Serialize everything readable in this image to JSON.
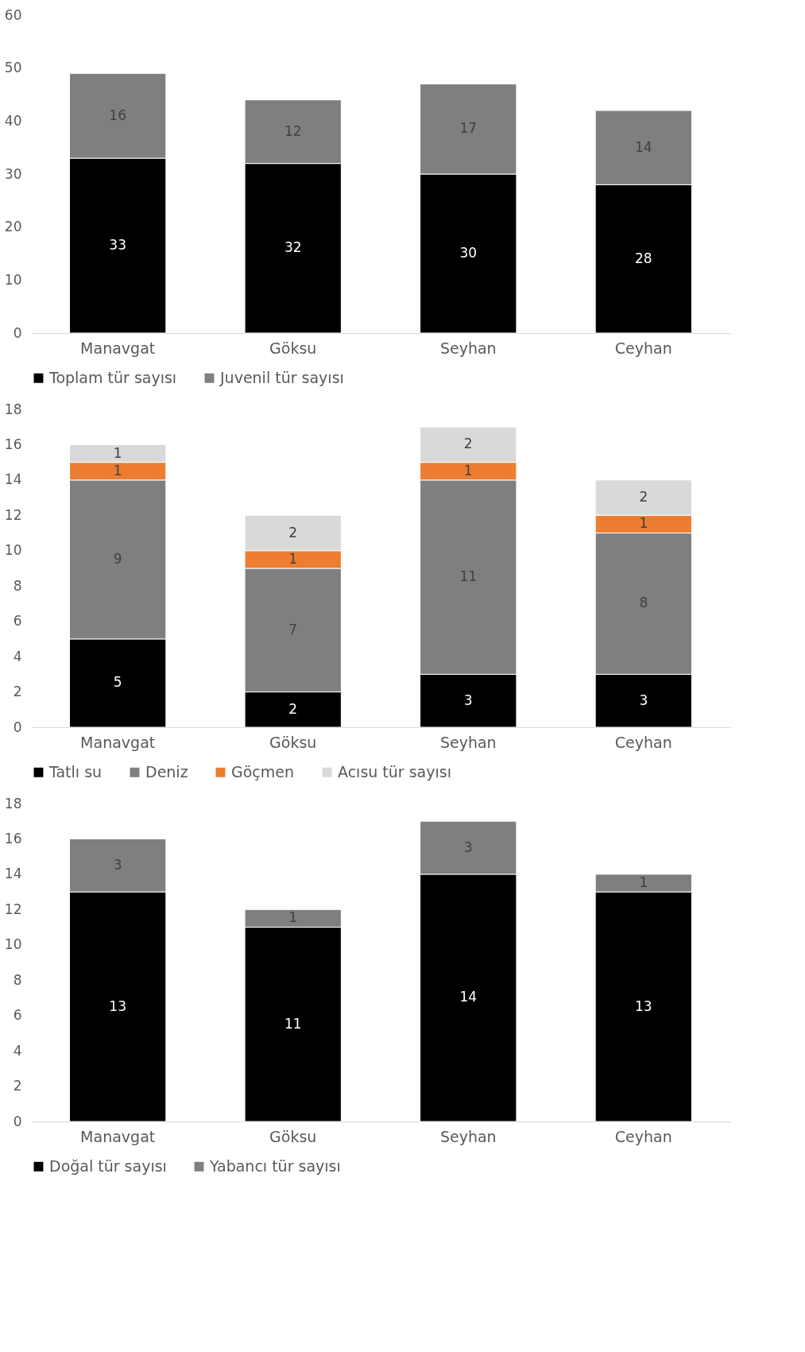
{
  "chart_data": [
    {
      "type": "bar",
      "stacked": true,
      "categories": [
        "Manavgat",
        "Göksu",
        "Seyhan",
        "Ceyhan"
      ],
      "ylim": [
        0,
        60
      ],
      "yticks": [
        0,
        10,
        20,
        30,
        40,
        50,
        60
      ],
      "grid": false,
      "legend": "bottom",
      "data_labels": true,
      "series": [
        {
          "name": "Toplam tür sayısı",
          "color": "#000000",
          "values": [
            33,
            32,
            30,
            28
          ]
        },
        {
          "name": "Juvenil tür sayısı",
          "color": "#7f7f7f",
          "values": [
            16,
            12,
            17,
            14
          ]
        }
      ]
    },
    {
      "type": "bar",
      "stacked": true,
      "categories": [
        "Manavgat",
        "Göksu",
        "Seyhan",
        "Ceyhan"
      ],
      "ylim": [
        0,
        18
      ],
      "yticks": [
        0,
        2,
        4,
        6,
        8,
        10,
        12,
        14,
        16,
        18
      ],
      "grid": false,
      "legend": "bottom",
      "data_labels": true,
      "series": [
        {
          "name": "Tatlı su",
          "color": "#000000",
          "values": [
            5,
            2,
            3,
            3
          ]
        },
        {
          "name": "Deniz",
          "color": "#7f7f7f",
          "values": [
            9,
            7,
            11,
            8
          ]
        },
        {
          "name": "Göçmen",
          "color": "#ed7d31",
          "values": [
            1,
            1,
            1,
            1
          ]
        },
        {
          "name": "Acısu tür sayısı",
          "color": "#d9d9d9",
          "values": [
            1,
            2,
            2,
            2
          ]
        }
      ]
    },
    {
      "type": "bar",
      "stacked": true,
      "categories": [
        "Manavgat",
        "Göksu",
        "Seyhan",
        "Ceyhan"
      ],
      "ylim": [
        0,
        18
      ],
      "yticks": [
        0,
        2,
        4,
        6,
        8,
        10,
        12,
        14,
        16,
        18
      ],
      "grid": false,
      "legend": "bottom",
      "data_labels": true,
      "series": [
        {
          "name": "Doğal tür sayısı",
          "color": "#000000",
          "values": [
            13,
            11,
            14,
            13
          ]
        },
        {
          "name": "Yabancı tür sayısı",
          "color": "#7f7f7f",
          "values": [
            3,
            1,
            3,
            1
          ]
        }
      ]
    }
  ]
}
